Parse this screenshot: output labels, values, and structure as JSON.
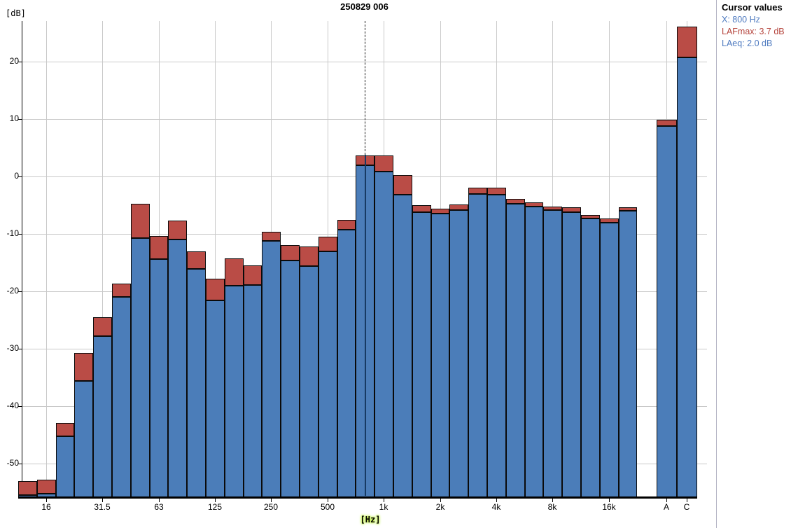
{
  "title": "250829 006",
  "y_axis": {
    "unit_label": "[dB]",
    "ticks": [
      20,
      10,
      0,
      -10,
      -20,
      -30,
      -40,
      -50
    ]
  },
  "x_axis": {
    "unit_label": "[Hz]"
  },
  "cursor_panel": {
    "heading": "Cursor values",
    "x_line": "X: 800 Hz",
    "lafmax_line": "LAFmax: 3.7 dB",
    "laeq_line": "LAeq: 2.0 dB"
  },
  "colors": {
    "laeq_bar": "#4b7db9",
    "lafmax_bar": "#ba4c46",
    "x_value_text": "#4f7bc0",
    "lafmax_text": "#b5443c",
    "laeq_text": "#4f7bc0"
  },
  "chart_data": {
    "type": "bar",
    "title": "250829 006",
    "xlabel": "[Hz]",
    "ylabel": "[dB]",
    "ylim": [
      -56,
      27
    ],
    "grid": true,
    "cursor_band": "800",
    "cursor_band_index": 18,
    "categories": [
      "12.5",
      "16",
      "20",
      "25",
      "31.5",
      "40",
      "50",
      "63",
      "80",
      "100",
      "125",
      "160",
      "200",
      "250",
      "315",
      "400",
      "500",
      "630",
      "800",
      "1k",
      "1.25k",
      "1.6k",
      "2k",
      "2.5k",
      "3.15k",
      "4k",
      "5k",
      "6.3k",
      "8k",
      "10k",
      "12.5k",
      "16k",
      "20k",
      "A",
      "C"
    ],
    "labeled_tick_indices": [
      1,
      4,
      7,
      10,
      13,
      16,
      19,
      22,
      25,
      28,
      31,
      33,
      34
    ],
    "labeled_tick_labels": [
      "16",
      "31.5",
      "63",
      "125",
      "250",
      "500",
      "1k",
      "2k",
      "4k",
      "8k",
      "16k",
      "A",
      "C"
    ],
    "series": [
      {
        "name": "LAFmax",
        "color": "#ba4c46",
        "values": [
          -53.0,
          -52.8,
          -42.9,
          -30.7,
          -24.5,
          -18.6,
          -4.8,
          -10.4,
          -7.7,
          -13.0,
          -17.8,
          -14.3,
          -15.5,
          -9.6,
          -12.0,
          -12.2,
          -10.5,
          -7.6,
          3.7,
          3.6,
          0.2,
          -5.0,
          -5.6,
          -4.9,
          -2.0,
          -1.9,
          -3.9,
          -4.5,
          -5.2,
          -5.4,
          -6.7,
          -7.3,
          -5.4,
          9.9,
          26.1
        ]
      },
      {
        "name": "LAeq",
        "color": "#4b7db9",
        "values": [
          -55.5,
          -55.2,
          -45.3,
          -35.6,
          -27.8,
          -21.0,
          -10.7,
          -14.4,
          -11.0,
          -16.1,
          -21.6,
          -19.0,
          -18.9,
          -11.2,
          -14.6,
          -15.6,
          -13.0,
          -9.3,
          2.0,
          0.9,
          -3.2,
          -6.2,
          -6.5,
          -5.8,
          -3.1,
          -3.2,
          -4.8,
          -5.2,
          -5.9,
          -6.2,
          -7.3,
          -8.0,
          -6.0,
          8.8,
          20.7
        ]
      }
    ]
  }
}
